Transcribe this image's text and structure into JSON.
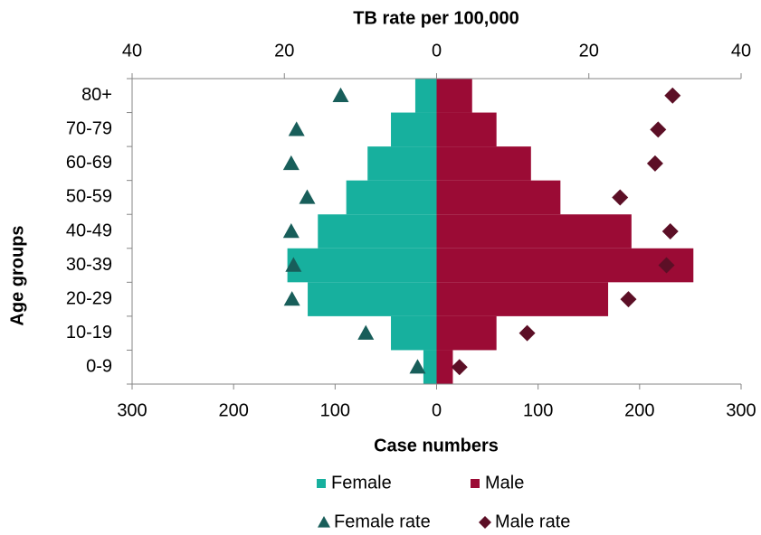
{
  "chart_data": {
    "type": "bar",
    "orientation": "horizontal",
    "title": "TB rate per 100,000",
    "x_label": "Case numbers",
    "y_label": "Age groups",
    "categories": [
      "0-9",
      "10-19",
      "20-29",
      "30-39",
      "40-49",
      "50-59",
      "60-69",
      "70-79",
      "80+"
    ],
    "xlim": [
      -300,
      300
    ],
    "xticks": [
      {
        "value": -300,
        "label": "300"
      },
      {
        "value": -200,
        "label": "200"
      },
      {
        "value": -100,
        "label": "100"
      },
      0,
      100,
      200,
      300
    ],
    "x2lim": [
      -40,
      40
    ],
    "x2ticks": [
      {
        "value": -40,
        "label": "40"
      },
      {
        "value": -20,
        "label": "20"
      },
      0,
      20,
      40
    ],
    "series": [
      {
        "name": "Female",
        "type": "bar",
        "color": "#17b09e",
        "values": [
          -13,
          -45,
          -127,
          -147,
          -117,
          -89,
          -68,
          -45,
          -21
        ]
      },
      {
        "name": "Male",
        "type": "bar",
        "color": "#9b0b35",
        "values": [
          16,
          59,
          169,
          253,
          192,
          122,
          93,
          59,
          35
        ]
      },
      {
        "name": "Female rate",
        "type": "scatter",
        "marker": "triangle",
        "axis": "x2",
        "color": "#185e5a",
        "values": [
          -2.5,
          -9.3,
          -19.0,
          -18.8,
          -19.1,
          -17.0,
          -19.1,
          -18.4,
          -12.6
        ]
      },
      {
        "name": "Male rate",
        "type": "scatter",
        "marker": "diamond",
        "axis": "x2",
        "color": "#5c0f26",
        "values": [
          3.0,
          11.9,
          25.2,
          30.2,
          30.7,
          24.1,
          28.7,
          29.1,
          31.0
        ]
      }
    ]
  }
}
